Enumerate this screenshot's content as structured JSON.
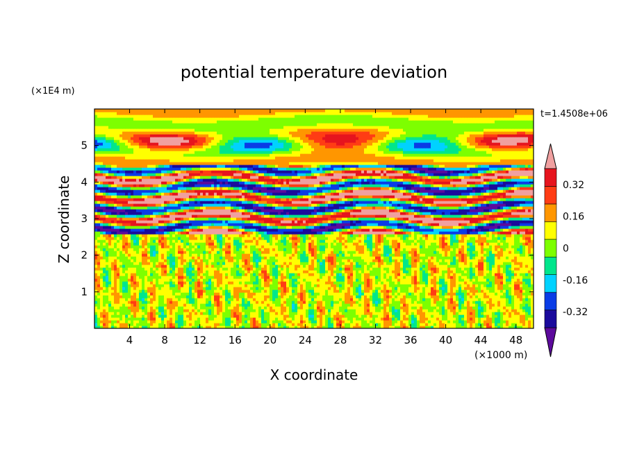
{
  "chart_data": {
    "type": "heatmap",
    "title": "potential temperature deviation",
    "time_label": "t=1.4508e+06",
    "xlabel": "X coordinate",
    "ylabel": "Z coordinate",
    "x_unit_label": "(×1000 m)",
    "y_unit_label": "(×1E4 m)",
    "xlim": [
      0,
      50
    ],
    "ylim": [
      0,
      6
    ],
    "x_ticks": [
      4,
      8,
      12,
      16,
      20,
      24,
      28,
      32,
      36,
      40,
      44,
      48
    ],
    "y_ticks": [
      1,
      2,
      3,
      4,
      5
    ],
    "colorbar": {
      "levels": [
        -0.4,
        -0.32,
        -0.24,
        -0.16,
        -0.08,
        0,
        0.08,
        0.16,
        0.24,
        0.32,
        0.4
      ],
      "tick_labels": [
        "0.32",
        "0.16",
        "0",
        "-0.16",
        "-0.32"
      ],
      "tick_values": [
        0.32,
        0.16,
        0,
        -0.16,
        -0.32
      ],
      "colors": [
        "#5c0a9c",
        "#1a0a9c",
        "#0a3ce6",
        "#00d2ff",
        "#00e68c",
        "#7dff00",
        "#ffff00",
        "#ff9600",
        "#ff3c14",
        "#e6141e",
        "#f0a0a0"
      ]
    },
    "regions": [
      {
        "z_range": [
          0,
          2.6
        ],
        "pattern": "small-scale noise, values near 0 (green)"
      },
      {
        "z_range": [
          2.6,
          4.5
        ],
        "pattern": "strong alternating bands, values from -0.4 to 0.4"
      },
      {
        "z_range": [
          4.5,
          6
        ],
        "pattern": "weak horizontal bands, values mostly near 0"
      }
    ]
  }
}
